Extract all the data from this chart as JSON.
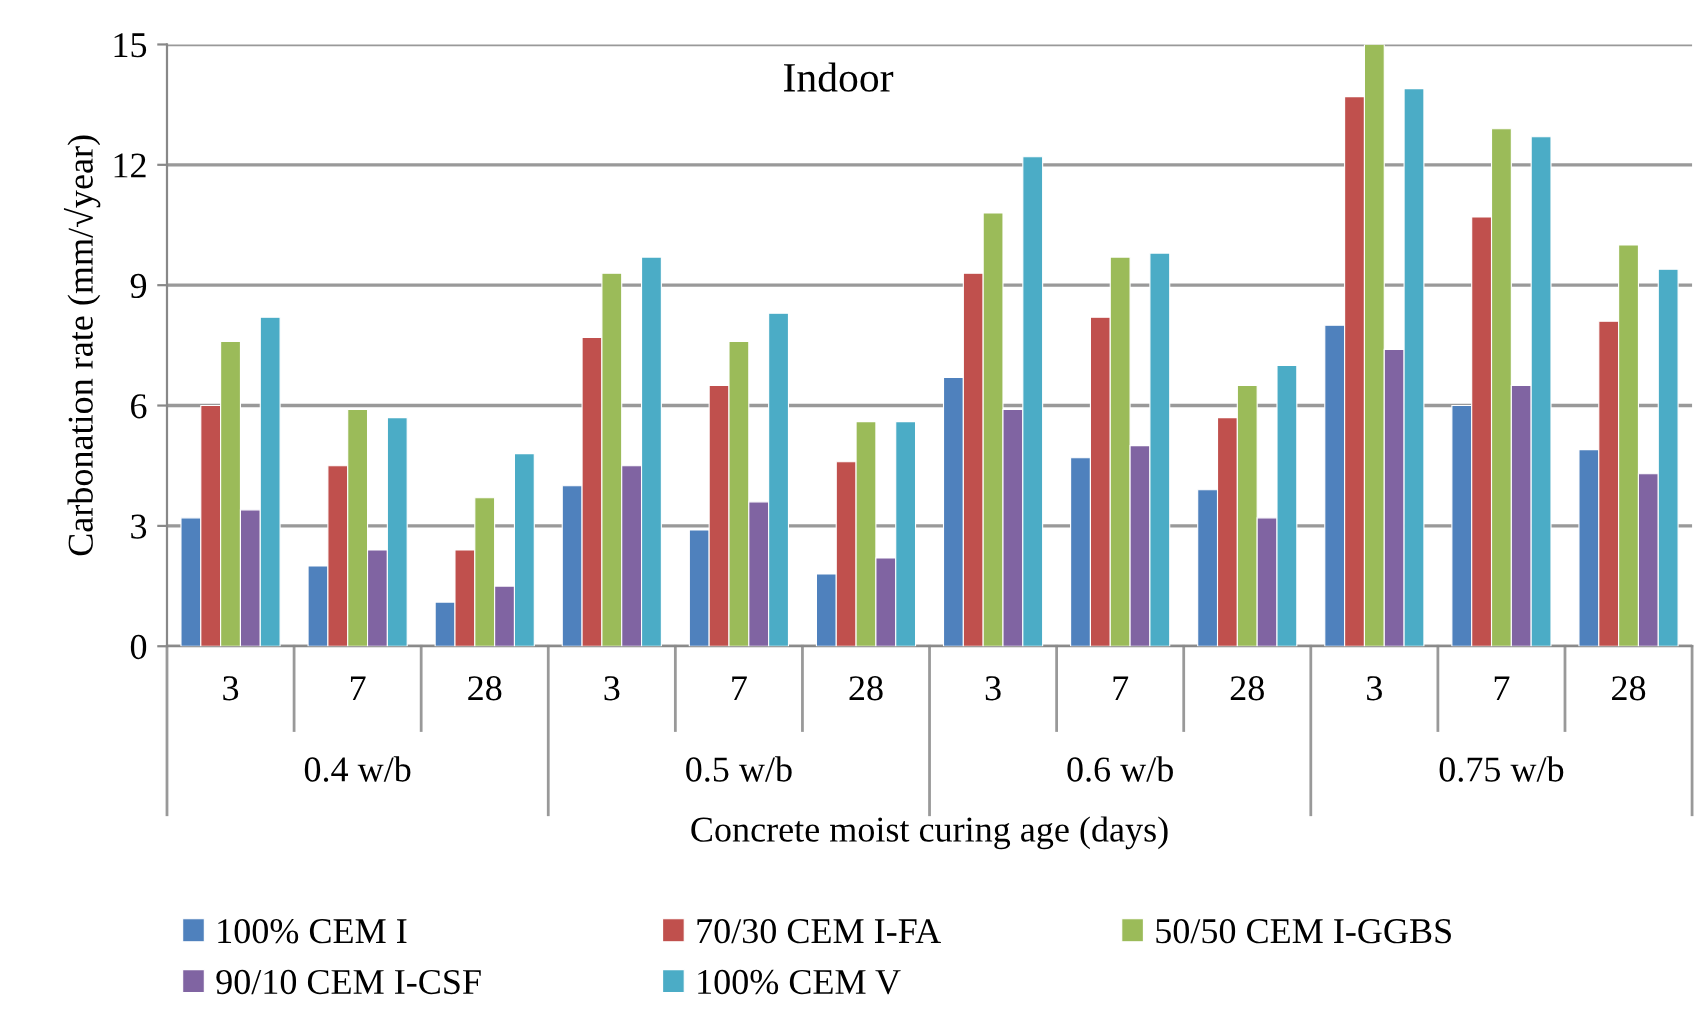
{
  "chart_data": {
    "type": "bar",
    "title": "Indoor",
    "xlabel": "Concrete moist curing age (days)",
    "ylabel": "Carbonation rate (mm/√year)",
    "categories": [
      "3",
      "7",
      "28",
      "3",
      "7",
      "28",
      "3",
      "7",
      "28",
      "3",
      "7",
      "28"
    ],
    "annotations": [
      "0.4 w/b",
      "0.5 w/b",
      "0.6 w/b",
      "0.75 w/b"
    ],
    "series": [
      {
        "name": "100% CEM I",
        "color": "#4f81bd",
        "values": [
          3.2,
          2.0,
          1.1,
          4.0,
          2.9,
          1.8,
          6.7,
          4.7,
          3.9,
          8.0,
          6.0,
          4.9
        ]
      },
      {
        "name": "70/30 CEM I-FA",
        "color": "#c0504d",
        "values": [
          6.0,
          4.5,
          2.4,
          7.7,
          6.5,
          4.6,
          9.3,
          8.2,
          5.7,
          13.7,
          10.7,
          8.1
        ]
      },
      {
        "name": "50/50 CEM I-GGBS",
        "color": "#9bbb59",
        "values": [
          7.6,
          5.9,
          3.7,
          9.3,
          7.6,
          5.6,
          10.8,
          9.7,
          6.5,
          15.0,
          12.9,
          10.0
        ]
      },
      {
        "name": "90/10 CEM I-CSF",
        "color": "#8064a2",
        "values": [
          3.4,
          2.4,
          1.5,
          4.5,
          3.6,
          2.2,
          5.9,
          5.0,
          3.2,
          7.4,
          6.5,
          4.3
        ]
      },
      {
        "name": "100% CEM V",
        "color": "#4bacc6",
        "values": [
          8.2,
          5.7,
          4.8,
          9.7,
          8.3,
          5.6,
          12.2,
          9.8,
          7.0,
          13.9,
          12.7,
          9.4
        ]
      }
    ],
    "ylim": [
      0,
      15
    ],
    "yticks": [
      0,
      3,
      6,
      9,
      12,
      15
    ],
    "grid": "y",
    "legend": "bottom"
  }
}
